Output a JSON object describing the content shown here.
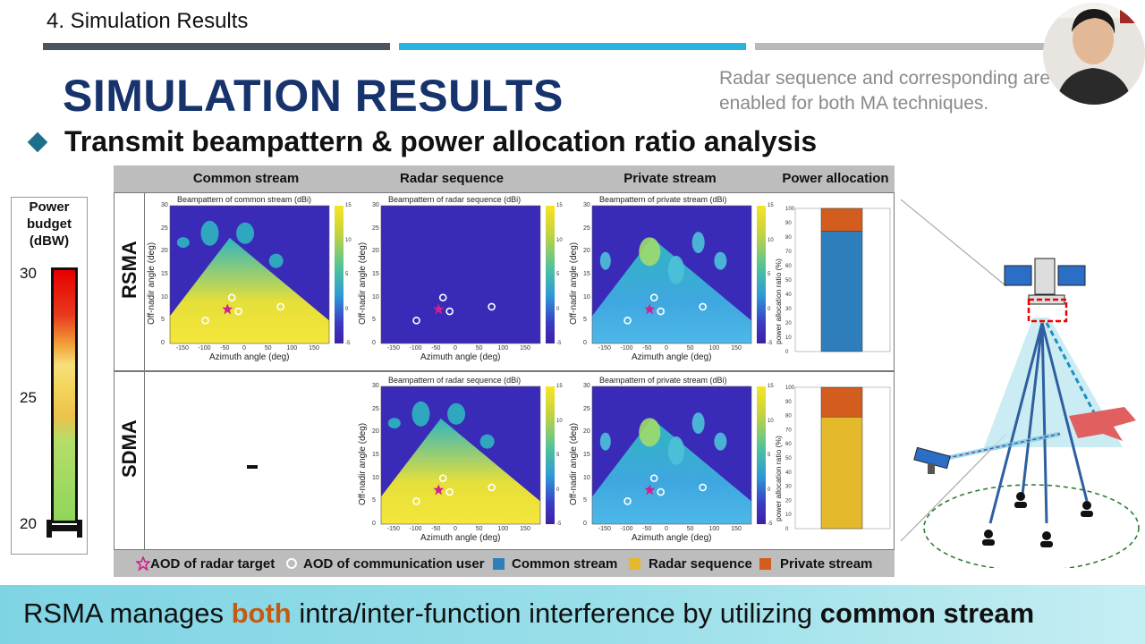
{
  "section": {
    "title": "4. Simulation Results"
  },
  "header": {
    "title": "SIMULATION RESULTS",
    "note": "Radar sequence and corresponding are enabled for both MA techniques."
  },
  "subtitle": "Transmit beampattern & power allocation ratio analysis",
  "columns": [
    "Common stream",
    "Radar sequence",
    "Private stream",
    "Power allocation"
  ],
  "rows": [
    "RSMA",
    "SDMA"
  ],
  "sdma_common": "-",
  "power_budget": {
    "title_l1": "Power",
    "title_l2": "budget",
    "title_l3": "(dBW)",
    "ticks": [
      "30",
      "25",
      "20"
    ]
  },
  "plots": {
    "rsma_common": {
      "title": "Beampattern of common stream (dBi)"
    },
    "rsma_radar": {
      "title": "Beampattern of radar sequence (dBi)"
    },
    "rsma_private": {
      "title": "Beampattern of private stream (dBi)"
    },
    "sdma_radar": {
      "title": "Beampattern of radar sequence (dBi)"
    },
    "sdma_private": {
      "title": "Beampattern of private stream (dBi)"
    },
    "xlabel": "Azimuth angle (deg)",
    "ylabel": "Off-nadir angle (deg)",
    "xticks": [
      "-150",
      "-100",
      "-50",
      "0",
      "50",
      "100",
      "150"
    ],
    "yticks": [
      "30",
      "25",
      "20",
      "15",
      "10",
      "5",
      "0"
    ],
    "cbar_ticks": [
      "15",
      "10",
      "5",
      "0",
      "-5"
    ],
    "pa_ylabel": "power allocation ratio (%)",
    "pa_yticks": [
      "100",
      "90",
      "80",
      "70",
      "60",
      "50",
      "40",
      "30",
      "20",
      "10",
      "0"
    ]
  },
  "chart_data": [
    {
      "type": "bar",
      "title": "",
      "ylabel": "power allocation ratio (%)",
      "ylim": [
        0,
        100
      ],
      "categories": [
        "RSMA"
      ],
      "series": [
        {
          "name": "Common stream",
          "values": [
            84
          ]
        },
        {
          "name": "Radar sequence",
          "values": [
            0
          ]
        },
        {
          "name": "Private stream",
          "values": [
            16
          ]
        }
      ]
    },
    {
      "type": "bar",
      "title": "",
      "ylabel": "power allocation ratio (%)",
      "ylim": [
        0,
        100
      ],
      "categories": [
        "SDMA"
      ],
      "series": [
        {
          "name": "Common stream",
          "values": [
            0
          ]
        },
        {
          "name": "Radar sequence",
          "values": [
            79
          ]
        },
        {
          "name": "Private stream",
          "values": [
            21
          ]
        }
      ]
    }
  ],
  "legend": {
    "target": "AOD of radar target",
    "user": "AOD of communication user",
    "common": "Common stream",
    "radar": "Radar sequence",
    "private": "Private stream"
  },
  "colors": {
    "common": "#2e7ebc",
    "radar": "#e5b92c",
    "private": "#d35d1e",
    "title": "#17336b",
    "target_star": "#d02090"
  },
  "banner": {
    "p1": "RSMA manages ",
    "p2": "both",
    "p3": " intra/inter-function interference by utilizing ",
    "p4": "common stream"
  }
}
